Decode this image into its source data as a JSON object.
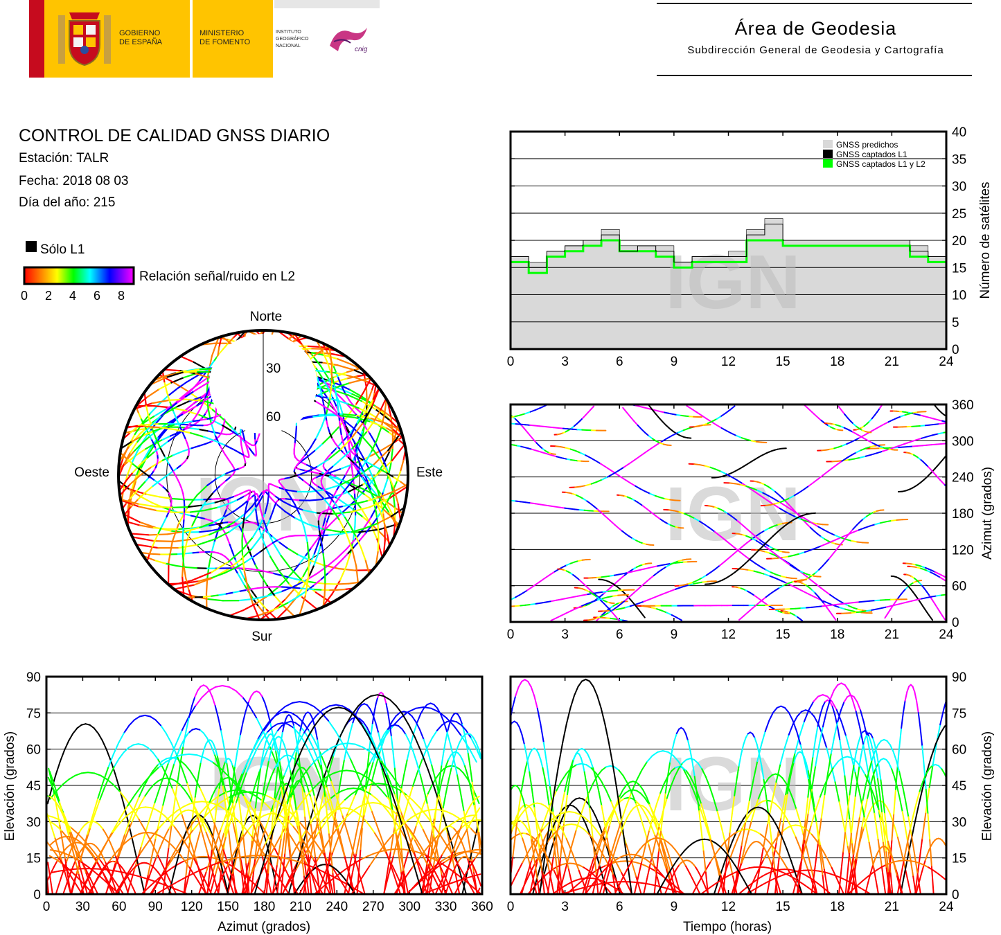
{
  "header": {
    "gov_line1": "GOBIERNO",
    "gov_line2": "DE ESPAÑA",
    "min_line1": "MINISTERIO",
    "min_line2": "DE FOMENTO",
    "ign_line1": "INSTITUTO",
    "ign_line2": "GEOGRÁFICO",
    "ign_line3": "NACIONAL",
    "cnig": "cnig",
    "area_title": "Área de Geodesia",
    "area_subtitle": "Subdirección General de Geodesia y Cartografía"
  },
  "report": {
    "title": "CONTROL DE CALIDAD GNSS DIARIO",
    "station": "Estación: TALR",
    "date": "Fecha: 2018 08 03",
    "doy": "Día del año: 215"
  },
  "legend": {
    "l1_only": "Sólo L1",
    "snr_label": "Relación señal/ruido en L2",
    "snr_ticks": [
      "0",
      "2",
      "4",
      "6",
      "8"
    ]
  },
  "colors": {
    "predicted": "#d9d9d9",
    "l1": "#000000",
    "l1l2": "#00ff00",
    "snr_scale": [
      "#ff0000",
      "#ff8000",
      "#ffff00",
      "#00ff00",
      "#00ffff",
      "#0000ff",
      "#ff00ff"
    ]
  },
  "watermark": "IGN",
  "chart_data": [
    {
      "id": "satellites",
      "type": "area",
      "x_ticks": [
        "0",
        "3",
        "6",
        "9",
        "12",
        "15",
        "18",
        "21",
        "24"
      ],
      "y_ticks": [
        "0",
        "5",
        "10",
        "15",
        "20",
        "25",
        "30",
        "35",
        "40"
      ],
      "xlim": [
        0,
        24
      ],
      "ylim": [
        0,
        40
      ],
      "ylabel": "Número de satélites",
      "legend": [
        "GNSS predichos",
        "GNSS captados L1",
        "GNSS captados L1 y L2"
      ],
      "legend_position": "top-right",
      "grid": true,
      "series": [
        {
          "name": "GNSS predichos",
          "x": [
            0,
            1,
            2,
            3,
            4,
            5,
            6,
            7,
            8,
            9,
            10,
            11,
            12,
            13,
            14,
            15,
            16,
            17,
            18,
            19,
            20,
            21,
            22,
            23,
            24
          ],
          "values": [
            17,
            16,
            18,
            19,
            20,
            22,
            19,
            19,
            19,
            16,
            17,
            17,
            18,
            22,
            24,
            20,
            20,
            20,
            20,
            20,
            20,
            20,
            19,
            17,
            17
          ]
        },
        {
          "name": "GNSS captados L1",
          "x": [
            0,
            1,
            2,
            3,
            4,
            5,
            6,
            7,
            8,
            9,
            10,
            11,
            12,
            13,
            14,
            15,
            16,
            17,
            18,
            19,
            20,
            21,
            22,
            23,
            24
          ],
          "values": [
            17,
            15,
            18,
            19,
            20,
            21,
            18,
            19,
            18,
            16,
            17,
            17,
            17,
            21,
            23,
            20,
            20,
            20,
            20,
            20,
            20,
            20,
            18,
            17,
            17
          ]
        },
        {
          "name": "GNSS captados L1 y L2",
          "x": [
            0,
            1,
            2,
            3,
            4,
            5,
            6,
            7,
            8,
            9,
            10,
            11,
            12,
            13,
            14,
            15,
            16,
            17,
            18,
            19,
            20,
            21,
            22,
            23,
            24
          ],
          "values": [
            16,
            14,
            17,
            18,
            19,
            20,
            18,
            18,
            17,
            15,
            16,
            16,
            16,
            20,
            20,
            19,
            19,
            19,
            19,
            19,
            19,
            19,
            17,
            16,
            16
          ]
        }
      ]
    },
    {
      "id": "skyplot",
      "type": "scatter",
      "labels": {
        "north": "Norte",
        "south": "Sur",
        "east": "Este",
        "west": "Oeste"
      },
      "ring_labels": [
        "30",
        "60"
      ]
    },
    {
      "id": "azimuth-time",
      "type": "scatter",
      "x_ticks": [
        "0",
        "3",
        "6",
        "9",
        "12",
        "15",
        "18",
        "21",
        "24"
      ],
      "y_ticks": [
        "0",
        "60",
        "120",
        "180",
        "240",
        "300",
        "360"
      ],
      "xlim": [
        0,
        24
      ],
      "ylim": [
        0,
        360
      ],
      "ylabel": "Azimut (grados)",
      "grid": true
    },
    {
      "id": "elevation-azimuth",
      "type": "scatter",
      "x_ticks": [
        "0",
        "30",
        "60",
        "90",
        "120",
        "150",
        "180",
        "210",
        "240",
        "270",
        "300",
        "330",
        "360"
      ],
      "y_ticks": [
        "0",
        "15",
        "30",
        "45",
        "60",
        "75",
        "90"
      ],
      "xlim": [
        0,
        360
      ],
      "ylim": [
        0,
        90
      ],
      "xlabel": "Azimut (grados)",
      "ylabel": "Elevación (grados)",
      "grid": true
    },
    {
      "id": "elevation-time",
      "type": "scatter",
      "x_ticks": [
        "0",
        "3",
        "6",
        "9",
        "12",
        "15",
        "18",
        "21",
        "24"
      ],
      "y_ticks": [
        "0",
        "15",
        "30",
        "45",
        "60",
        "75",
        "90"
      ],
      "xlim": [
        0,
        24
      ],
      "ylim": [
        0,
        90
      ],
      "xlabel": "Tiempo (horas)",
      "ylabel": "Elevación (grados)",
      "grid": true
    }
  ]
}
